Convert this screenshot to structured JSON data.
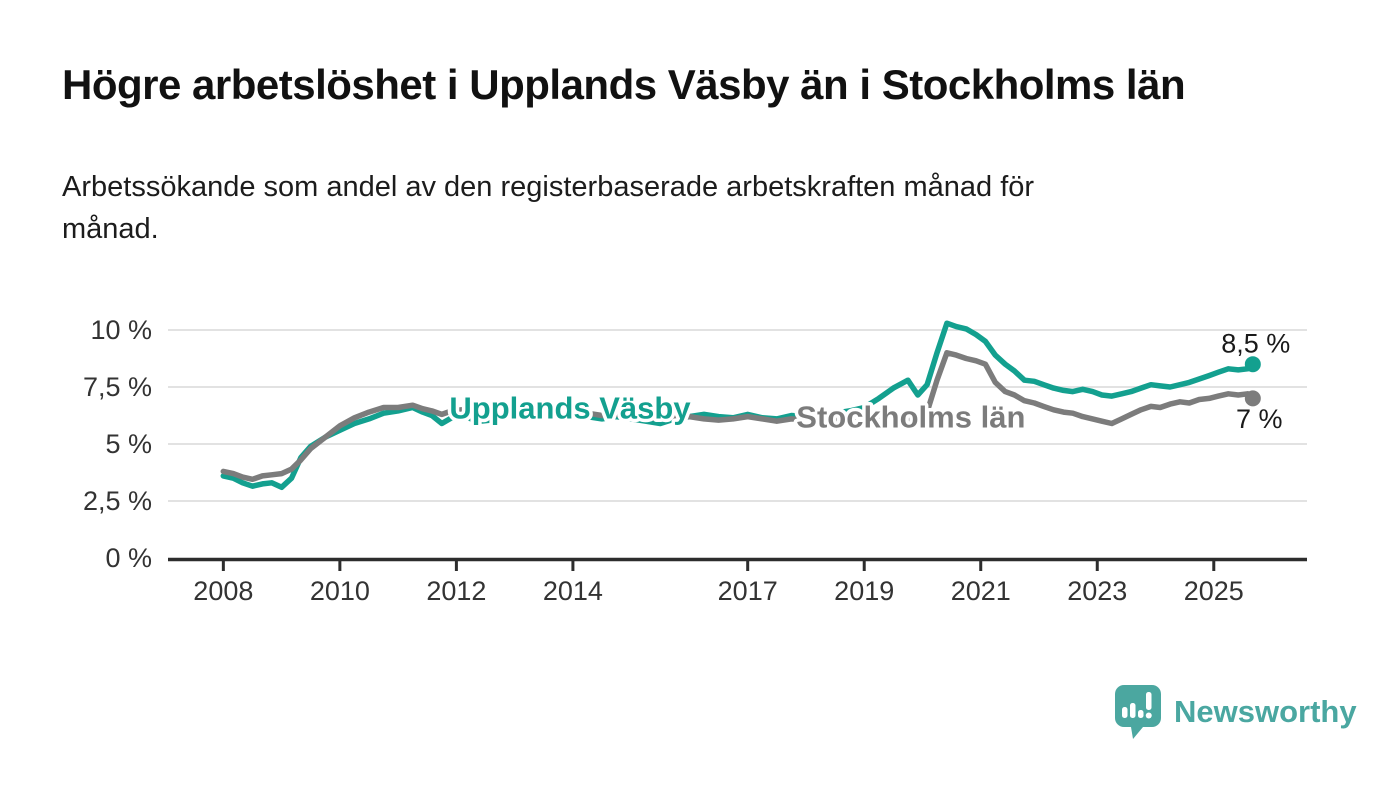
{
  "header": {
    "title": "Högre arbetslöshet i Upplands Väsby än i Stockholms län",
    "subtitle_lines": [
      "Arbetssökande som andel av den registerbaserade arbetskraften månad för",
      "månad."
    ]
  },
  "chart_data": {
    "type": "line",
    "unit": "%",
    "decimal_style": "comma",
    "grid": "horizontal",
    "legend_position": "inline-labels",
    "xlim": [
      2007.05,
      2026.6
    ],
    "ylim": [
      0,
      10
    ],
    "colors": {
      "upplands_vasby": "#13a08f",
      "stockholms_lan": "#7c7c7c",
      "axis": "#2d2d2d",
      "gridline": "#d8d8d8",
      "tick_text": "#333333",
      "annotation_text": "#1a1a1a"
    },
    "y_ticks": [
      {
        "value": 0,
        "label": "0 %"
      },
      {
        "value": 2.5,
        "label": "2,5 %"
      },
      {
        "value": 5,
        "label": "5 %"
      },
      {
        "value": 7.5,
        "label": "7,5 %"
      },
      {
        "value": 10,
        "label": "10 %"
      }
    ],
    "x_ticks": [
      {
        "year": 2008,
        "label": "2008"
      },
      {
        "year": 2010,
        "label": "2010"
      },
      {
        "year": 2012,
        "label": "2012"
      },
      {
        "year": 2014,
        "label": "2014"
      },
      {
        "year": 2017,
        "label": "2017"
      },
      {
        "year": 2019,
        "label": "2019"
      },
      {
        "year": 2021,
        "label": "2021"
      },
      {
        "year": 2023,
        "label": "2023"
      },
      {
        "year": 2025,
        "label": "2025"
      }
    ],
    "series": [
      {
        "name": "Upplands Väsby",
        "color": "#13a08f",
        "label_pos": {
          "x": 2013.95,
          "y": 6.6
        },
        "end_label": {
          "text": "8,5 %",
          "x": 2025.72,
          "y": 9.4
        },
        "latest_value": 8.5,
        "points": [
          [
            2008.0,
            3.6
          ],
          [
            2008.17,
            3.5
          ],
          [
            2008.33,
            3.3
          ],
          [
            2008.5,
            3.15
          ],
          [
            2008.67,
            3.25
          ],
          [
            2008.83,
            3.3
          ],
          [
            2009.0,
            3.1
          ],
          [
            2009.17,
            3.5
          ],
          [
            2009.33,
            4.4
          ],
          [
            2009.5,
            4.9
          ],
          [
            2009.75,
            5.3
          ],
          [
            2010.0,
            5.6
          ],
          [
            2010.25,
            5.9
          ],
          [
            2010.5,
            6.1
          ],
          [
            2010.75,
            6.35
          ],
          [
            2011.0,
            6.45
          ],
          [
            2011.25,
            6.6
          ],
          [
            2011.42,
            6.4
          ],
          [
            2011.58,
            6.25
          ],
          [
            2011.75,
            5.9
          ],
          [
            2011.92,
            6.15
          ],
          [
            2012.08,
            6.35
          ],
          [
            2012.25,
            6.1
          ],
          [
            2012.42,
            6.0
          ],
          [
            2012.58,
            6.05
          ],
          [
            2012.75,
            6.2
          ],
          [
            2013.0,
            6.4
          ],
          [
            2013.25,
            6.3
          ],
          [
            2013.5,
            6.2
          ],
          [
            2013.75,
            6.35
          ],
          [
            2014.0,
            6.3
          ],
          [
            2014.25,
            6.2
          ],
          [
            2014.5,
            6.1
          ],
          [
            2014.75,
            6.2
          ],
          [
            2015.0,
            6.1
          ],
          [
            2015.25,
            6.0
          ],
          [
            2015.5,
            5.9
          ],
          [
            2015.75,
            6.1
          ],
          [
            2016.0,
            6.2
          ],
          [
            2016.25,
            6.3
          ],
          [
            2016.5,
            6.2
          ],
          [
            2016.75,
            6.15
          ],
          [
            2017.0,
            6.3
          ],
          [
            2017.25,
            6.15
          ],
          [
            2017.5,
            6.1
          ],
          [
            2017.75,
            6.25
          ],
          [
            2018.0,
            6.2
          ],
          [
            2018.25,
            6.3
          ],
          [
            2018.5,
            6.35
          ],
          [
            2018.75,
            6.45
          ],
          [
            2019.0,
            6.6
          ],
          [
            2019.25,
            7.0
          ],
          [
            2019.5,
            7.45
          ],
          [
            2019.75,
            7.8
          ],
          [
            2019.92,
            7.15
          ],
          [
            2020.08,
            7.6
          ],
          [
            2020.25,
            9.0
          ],
          [
            2020.42,
            10.3
          ],
          [
            2020.58,
            10.15
          ],
          [
            2020.75,
            10.05
          ],
          [
            2020.92,
            9.8
          ],
          [
            2021.08,
            9.5
          ],
          [
            2021.25,
            8.9
          ],
          [
            2021.42,
            8.5
          ],
          [
            2021.58,
            8.2
          ],
          [
            2021.75,
            7.8
          ],
          [
            2021.92,
            7.75
          ],
          [
            2022.08,
            7.6
          ],
          [
            2022.25,
            7.45
          ],
          [
            2022.42,
            7.35
          ],
          [
            2022.58,
            7.3
          ],
          [
            2022.75,
            7.4
          ],
          [
            2022.92,
            7.3
          ],
          [
            2023.08,
            7.15
          ],
          [
            2023.25,
            7.1
          ],
          [
            2023.42,
            7.2
          ],
          [
            2023.58,
            7.3
          ],
          [
            2023.75,
            7.45
          ],
          [
            2023.92,
            7.6
          ],
          [
            2024.08,
            7.55
          ],
          [
            2024.25,
            7.5
          ],
          [
            2024.42,
            7.6
          ],
          [
            2024.58,
            7.7
          ],
          [
            2024.75,
            7.85
          ],
          [
            2024.92,
            8.0
          ],
          [
            2025.08,
            8.15
          ],
          [
            2025.25,
            8.3
          ],
          [
            2025.42,
            8.25
          ],
          [
            2025.58,
            8.3
          ],
          [
            2025.67,
            8.5
          ]
        ]
      },
      {
        "name": "Stockholms län",
        "color": "#7c7c7c",
        "label_pos": {
          "x": 2019.8,
          "y": 6.2
        },
        "end_label": {
          "text": "7 %",
          "x": 2025.78,
          "y": 6.1
        },
        "latest_value": 7.0,
        "points": [
          [
            2008.0,
            3.8
          ],
          [
            2008.17,
            3.7
          ],
          [
            2008.33,
            3.55
          ],
          [
            2008.5,
            3.45
          ],
          [
            2008.67,
            3.6
          ],
          [
            2008.83,
            3.65
          ],
          [
            2009.0,
            3.7
          ],
          [
            2009.17,
            3.9
          ],
          [
            2009.33,
            4.3
          ],
          [
            2009.5,
            4.8
          ],
          [
            2009.75,
            5.3
          ],
          [
            2010.0,
            5.8
          ],
          [
            2010.25,
            6.15
          ],
          [
            2010.5,
            6.4
          ],
          [
            2010.75,
            6.6
          ],
          [
            2011.0,
            6.6
          ],
          [
            2011.25,
            6.7
          ],
          [
            2011.42,
            6.55
          ],
          [
            2011.58,
            6.45
          ],
          [
            2011.75,
            6.3
          ],
          [
            2011.92,
            6.45
          ],
          [
            2012.08,
            6.5
          ],
          [
            2012.25,
            6.4
          ],
          [
            2012.42,
            6.4
          ],
          [
            2012.58,
            6.45
          ],
          [
            2012.75,
            6.5
          ],
          [
            2013.0,
            6.55
          ],
          [
            2013.25,
            6.45
          ],
          [
            2013.5,
            6.4
          ],
          [
            2013.75,
            6.5
          ],
          [
            2014.0,
            6.45
          ],
          [
            2014.25,
            6.35
          ],
          [
            2014.5,
            6.25
          ],
          [
            2014.75,
            6.3
          ],
          [
            2015.0,
            6.25
          ],
          [
            2015.25,
            6.15
          ],
          [
            2015.5,
            6.1
          ],
          [
            2015.75,
            6.2
          ],
          [
            2016.0,
            6.2
          ],
          [
            2016.25,
            6.1
          ],
          [
            2016.5,
            6.05
          ],
          [
            2016.75,
            6.1
          ],
          [
            2017.0,
            6.2
          ],
          [
            2017.25,
            6.1
          ],
          [
            2017.5,
            6.0
          ],
          [
            2017.75,
            6.1
          ],
          [
            2018.0,
            6.05
          ],
          [
            2018.25,
            6.0
          ],
          [
            2018.5,
            6.05
          ],
          [
            2018.75,
            6.1
          ],
          [
            2019.0,
            6.1
          ],
          [
            2019.25,
            6.15
          ],
          [
            2019.5,
            6.2
          ],
          [
            2019.75,
            6.1
          ],
          [
            2019.92,
            6.1
          ],
          [
            2020.08,
            6.4
          ],
          [
            2020.25,
            7.8
          ],
          [
            2020.42,
            9.0
          ],
          [
            2020.58,
            8.9
          ],
          [
            2020.75,
            8.75
          ],
          [
            2020.92,
            8.65
          ],
          [
            2021.08,
            8.5
          ],
          [
            2021.25,
            7.7
          ],
          [
            2021.42,
            7.3
          ],
          [
            2021.58,
            7.15
          ],
          [
            2021.75,
            6.9
          ],
          [
            2021.92,
            6.8
          ],
          [
            2022.08,
            6.65
          ],
          [
            2022.25,
            6.5
          ],
          [
            2022.42,
            6.4
          ],
          [
            2022.58,
            6.35
          ],
          [
            2022.75,
            6.2
          ],
          [
            2022.92,
            6.1
          ],
          [
            2023.08,
            6.0
          ],
          [
            2023.25,
            5.9
          ],
          [
            2023.42,
            6.1
          ],
          [
            2023.58,
            6.3
          ],
          [
            2023.75,
            6.5
          ],
          [
            2023.92,
            6.65
          ],
          [
            2024.08,
            6.6
          ],
          [
            2024.25,
            6.75
          ],
          [
            2024.42,
            6.85
          ],
          [
            2024.58,
            6.8
          ],
          [
            2024.75,
            6.95
          ],
          [
            2024.92,
            7.0
          ],
          [
            2025.08,
            7.1
          ],
          [
            2025.25,
            7.2
          ],
          [
            2025.42,
            7.15
          ],
          [
            2025.58,
            7.2
          ],
          [
            2025.67,
            7.0
          ]
        ]
      }
    ]
  },
  "footer": {
    "brand": "Newsworthy"
  }
}
